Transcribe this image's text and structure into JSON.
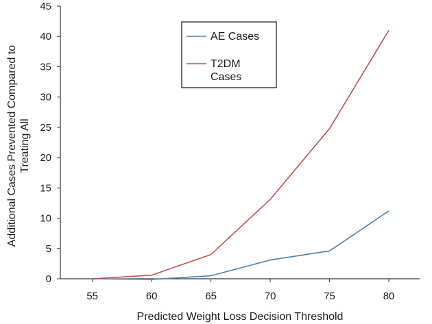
{
  "chart_data": {
    "type": "line",
    "x": [
      55,
      60,
      65,
      70,
      75,
      80
    ],
    "series": [
      {
        "name": "AE Cases",
        "color": "#4a7fb0",
        "values": [
          0,
          -0.1,
          0.5,
          3.1,
          4.6,
          11.2
        ]
      },
      {
        "name": "T2DM Cases",
        "color": "#c0504d",
        "values": [
          0,
          0.6,
          4.0,
          13.1,
          24.8,
          41.0
        ]
      }
    ],
    "legend_lines": [
      [
        "AE Cases"
      ],
      [
        "T2DM",
        "Cases"
      ]
    ],
    "xlabel": "Predicted Weight Loss Decision Threshold",
    "ylabel_lines": [
      "Additional Cases Prevented Compared to",
      "Treating All"
    ],
    "xlim": [
      52.3,
      82.6
    ],
    "ylim": [
      0,
      45
    ],
    "yticks": [
      0,
      5,
      10,
      15,
      20,
      25,
      30,
      35,
      40,
      45
    ],
    "xticks": [
      55,
      60,
      65,
      70,
      75,
      80
    ],
    "grid": false,
    "legend_position": "top-center"
  }
}
